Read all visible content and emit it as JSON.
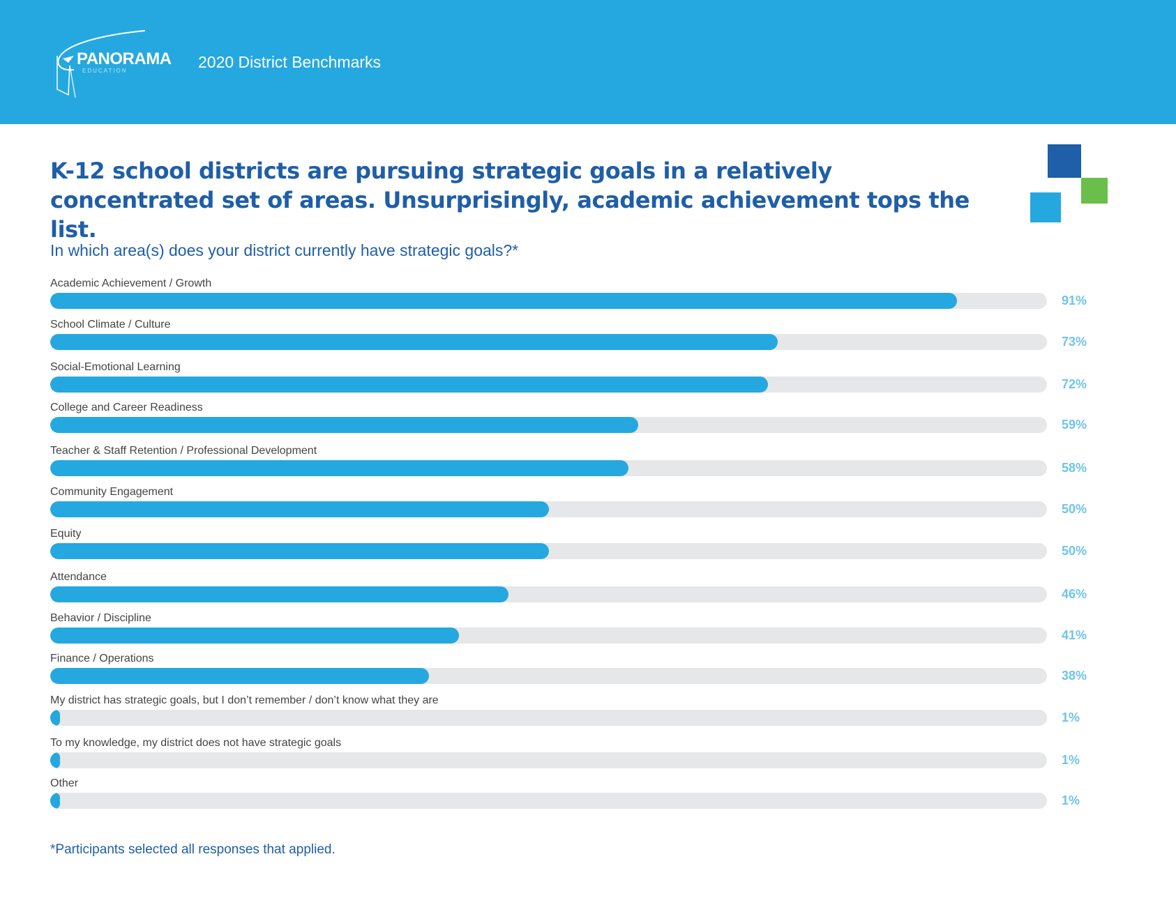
{
  "header": {
    "logo_text": "PANORAMA",
    "logo_sub": "EDUCATION",
    "title": "2020 District Benchmarks",
    "background": "#25a8df"
  },
  "headline": "K-12 school districts are pursuing strategic goals in a relatively concentrated set of areas. Unsurprisingly, academic achievement tops the list.",
  "colors": {
    "bar_fill": "#25a8df",
    "bar_track": "#e6e7e8",
    "percent_label": "#6fc4ea",
    "heading": "#1f5ea8",
    "deco_dark": "#1f5ea8",
    "deco_green": "#6abf4b",
    "deco_light": "#25a8df"
  },
  "chart_data": {
    "type": "bar",
    "orientation": "horizontal",
    "title": "In which area(s) does your district currently have strategic goals?*",
    "xlim": [
      0,
      100
    ],
    "unit": "%",
    "categories": [
      "Academic Achievement / Growth",
      "School Climate / Culture",
      "Social-Emotional Learning",
      "College and Career Readiness",
      "Teacher & Staff Retention / Professional Development",
      "Community Engagement",
      "Equity",
      "Attendance",
      "Behavior / Discipline",
      "Finance / Operations",
      "My district has strategic goals, but I don’t remember / don’t know what they are",
      "To my knowledge, my district does not have strategic goals",
      "Other"
    ],
    "values": [
      91,
      73,
      72,
      59,
      58,
      50,
      50,
      46,
      41,
      38,
      1,
      1,
      1
    ],
    "value_labels": [
      "91%",
      "73%",
      "72%",
      "59%",
      "58%",
      "50%",
      "50%",
      "46%",
      "41%",
      "38%",
      "1%",
      "1%",
      "1%"
    ],
    "footnote": "*Participants selected all responses that applied."
  }
}
